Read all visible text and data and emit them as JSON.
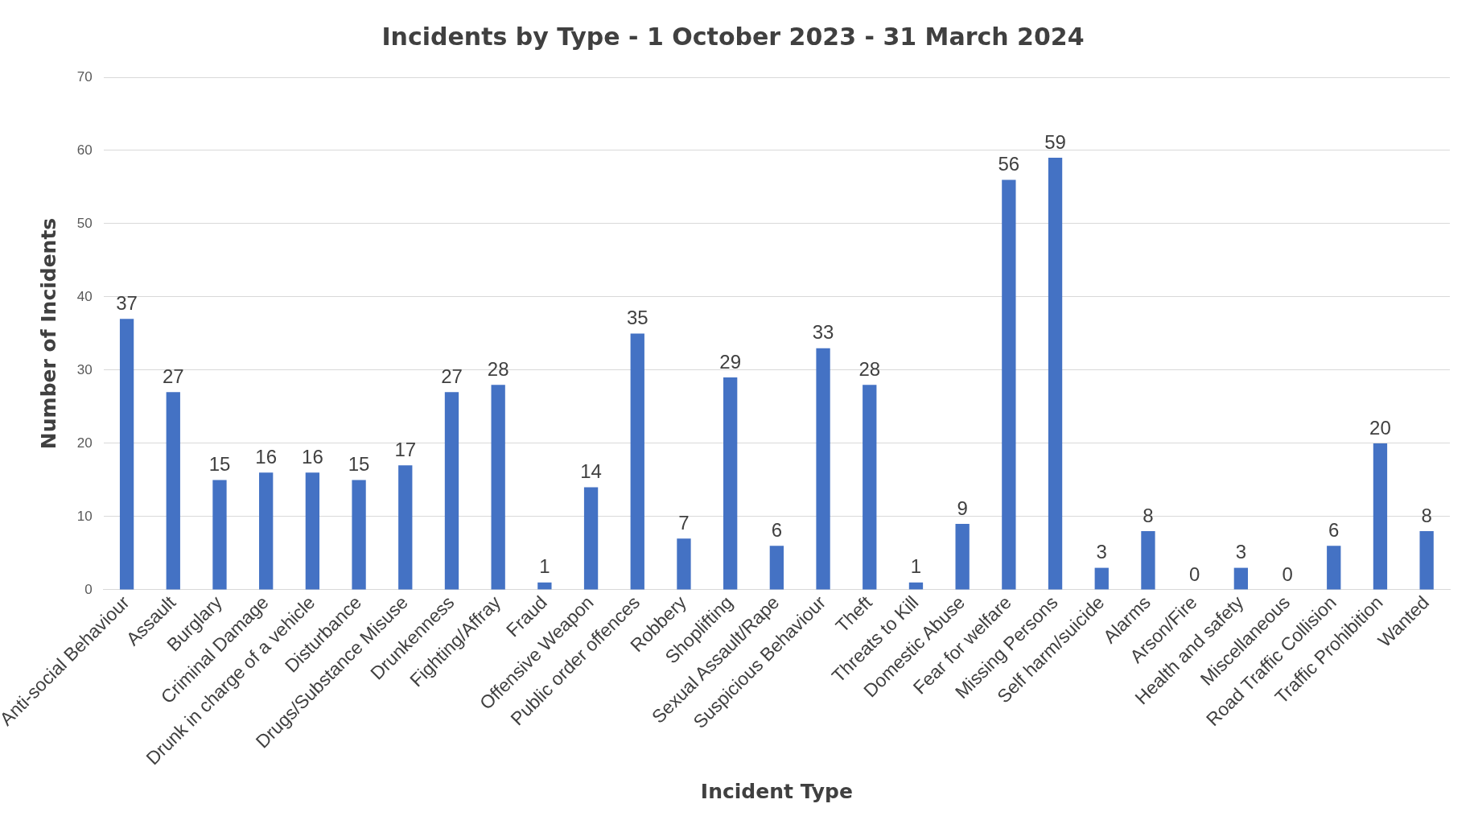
{
  "chart_data": {
    "type": "bar",
    "title": "Incidents by Type - 1 October 2023 - 31 March 2024",
    "xlabel": "Incident Type",
    "ylabel": "Number of Incidents",
    "categories": [
      "Anti-social Behaviour",
      "Assault",
      "Burglary",
      "Criminal Damage",
      "Drunk in charge of a vehicle",
      "Disturbance",
      "Drugs/Substance Misuse",
      "Drunkenness",
      "Fighting/Affray",
      "Fraud",
      "Offensive Weapon",
      "Public order offences",
      "Robbery",
      "Shoplifting",
      "Sexual Assault/Rape",
      "Suspicious Behaviour",
      "Theft",
      "Threats to Kill",
      "Domestic Abuse",
      "Fear for welfare",
      "Missing Persons",
      "Self harm/suicide",
      "Alarms",
      "Arson/Fire",
      "Health and safety",
      "Miscellaneous",
      "Road Traffic Collision",
      "Traffic Prohibition",
      "Wanted"
    ],
    "values": [
      37,
      27,
      15,
      16,
      16,
      15,
      17,
      27,
      28,
      1,
      14,
      35,
      7,
      29,
      6,
      33,
      28,
      1,
      9,
      56,
      59,
      3,
      8,
      0,
      3,
      0,
      6,
      20,
      8
    ],
    "color": "#4472c4",
    "ylim": [
      0,
      70
    ],
    "yticks": [
      0,
      10,
      20,
      30,
      40,
      50,
      60,
      70
    ],
    "grid": "y",
    "data_labels": true
  }
}
